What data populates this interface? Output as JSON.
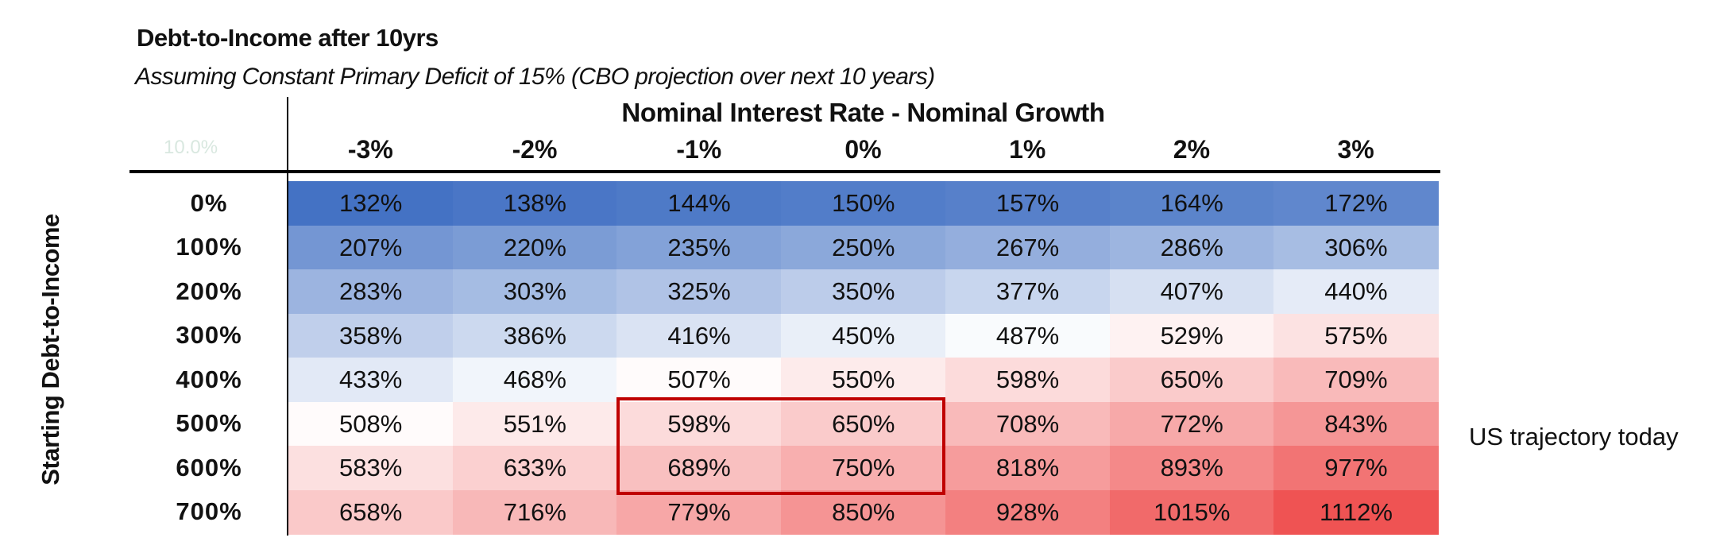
{
  "chart_data": {
    "type": "heatmap",
    "title": "Debt-to-Income after 10yrs",
    "subtitle": "Assuming Constant Primary Deficit of 15% (CBO projection over next 10 years)",
    "corner_label": "10.0%",
    "column_group_label": "Nominal Interest Rate - Nominal Growth",
    "row_axis_label": "Starting Debt-to-Income",
    "columns": [
      "-3%",
      "-2%",
      "-1%",
      "0%",
      "1%",
      "2%",
      "3%"
    ],
    "rows": [
      "0%",
      "100%",
      "200%",
      "300%",
      "400%",
      "500%",
      "600%",
      "700%"
    ],
    "cells": [
      [
        "132%",
        "138%",
        "144%",
        "150%",
        "157%",
        "164%",
        "172%"
      ],
      [
        "207%",
        "220%",
        "235%",
        "250%",
        "267%",
        "286%",
        "306%"
      ],
      [
        "283%",
        "303%",
        "325%",
        "350%",
        "377%",
        "407%",
        "440%"
      ],
      [
        "358%",
        "386%",
        "416%",
        "450%",
        "487%",
        "529%",
        "575%"
      ],
      [
        "433%",
        "468%",
        "507%",
        "550%",
        "598%",
        "650%",
        "709%"
      ],
      [
        "508%",
        "551%",
        "598%",
        "650%",
        "708%",
        "772%",
        "843%"
      ],
      [
        "583%",
        "633%",
        "689%",
        "750%",
        "818%",
        "893%",
        "977%"
      ],
      [
        "658%",
        "716%",
        "779%",
        "850%",
        "928%",
        "1015%",
        "1112%"
      ]
    ],
    "color_scale": {
      "low": "#4472c4",
      "mid": "#ffffff",
      "high": "#ef5353",
      "mid_value": 500,
      "low_value": 132,
      "high_value": 1112
    },
    "highlight": {
      "rows": [
        "500%",
        "600%"
      ],
      "columns": [
        "-1%",
        "0%"
      ],
      "color": "#c00000"
    },
    "annotation": "US trajectory today"
  }
}
